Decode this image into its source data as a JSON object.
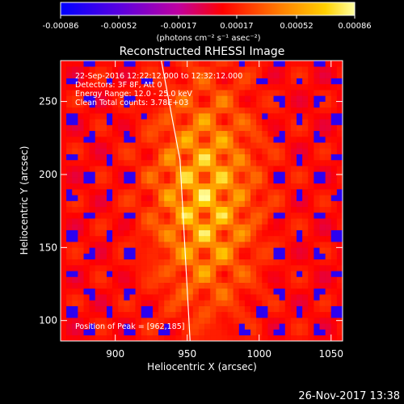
{
  "chart_data": {
    "type": "heatmap",
    "title": "Reconstructed RHESSI Image",
    "xlabel": "Heliocentric X (arcsec)",
    "ylabel": "Heliocentric Y (arcsec)",
    "xlim": [
      862,
      1058
    ],
    "ylim": [
      86,
      278
    ],
    "x_ticks": [
      900,
      950,
      1000,
      1050
    ],
    "y_ticks": [
      100,
      150,
      200,
      250
    ],
    "x_tick_labels": [
      "900",
      "950",
      "1000",
      "1050"
    ],
    "y_tick_labels": [
      "100",
      "150",
      "200",
      "250"
    ],
    "colorbar": {
      "range": [
        -0.00086,
        0.00086
      ],
      "ticks": [
        -0.00086,
        -0.00052,
        -0.00017,
        0.00017,
        0.00052,
        0.00086
      ],
      "tick_labels": [
        "-0.00086",
        "-0.00052",
        "-0.00017",
        "0.00017",
        "0.00052",
        "0.00086"
      ],
      "unit_label": "(photons cm⁻² s⁻¹ asec⁻²)"
    },
    "annotations": {
      "time_range": "22-Sep-2016 12:22:12.000 to 12:32:12.000",
      "detectors": "Detectors: 3F 8F, Att 0",
      "energy": "Energy Range: 12.0 - 25.0 keV",
      "method": "Clean    Total counts: 3.78E+03",
      "peak": "Position of Peak = [962,185]"
    },
    "peak_position": [
      962,
      185
    ],
    "limb_line": [
      [
        932,
        278
      ],
      [
        945,
        210
      ],
      [
        952,
        86
      ]
    ]
  },
  "footer": {
    "timestamp": "26-Nov-2017 13:38"
  }
}
